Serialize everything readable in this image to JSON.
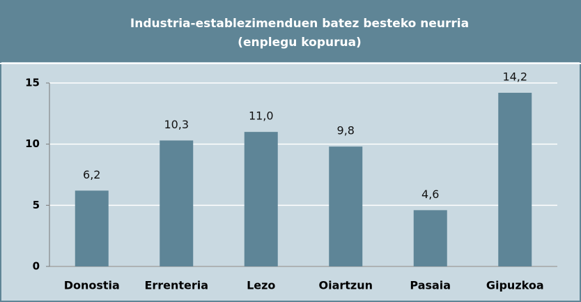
{
  "chart_data": {
    "type": "bar",
    "title": "Industria-establezimenduen batez besteko neurria",
    "subtitle": "(enplegu kopurua)",
    "categories": [
      "Donostia",
      "Errenteria",
      "Lezo",
      "Oiartzun",
      "Pasaia",
      "Gipuzkoa"
    ],
    "values": [
      6.2,
      10.3,
      11.0,
      9.8,
      4.6,
      14.2
    ],
    "value_labels": [
      "6,2",
      "10,3",
      "11,0",
      "9,8",
      "4,6",
      "14,2"
    ],
    "color": "#5e8597",
    "ylim": [
      0,
      15
    ],
    "yticks": [
      0,
      5,
      10,
      15
    ],
    "grid": true
  }
}
